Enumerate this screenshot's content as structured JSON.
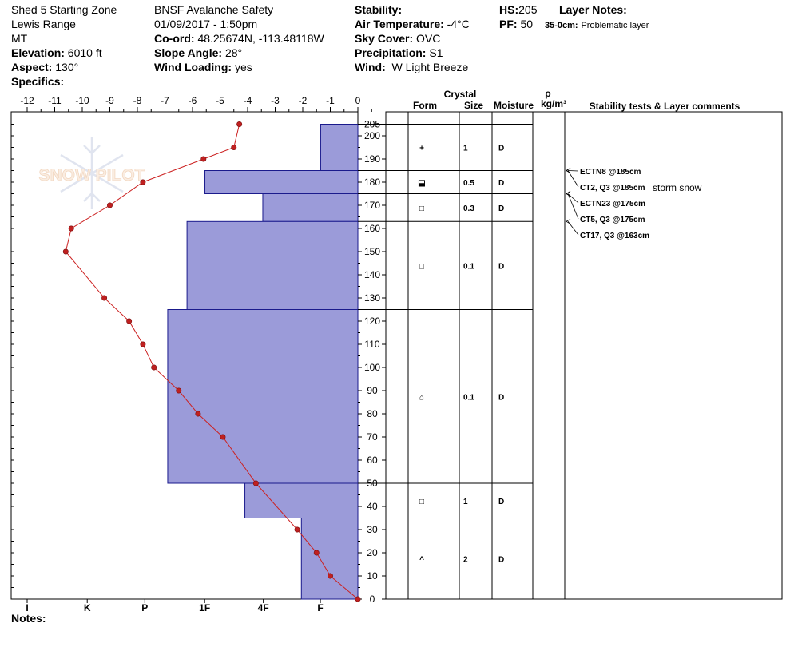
{
  "header": {
    "location": "Shed 5 Starting Zone",
    "range": "Lewis Range",
    "state": "MT",
    "elevation_label": "Elevation:",
    "elevation": "6010 ft",
    "aspect_label": "Aspect:",
    "aspect": "130°",
    "specifics_label": "Specifics:",
    "org": "BNSF Avalanche Safety",
    "datetime": "01/09/2017 - 1:50pm",
    "coord_label": "Co-ord:",
    "coord": "48.25674N, -113.48118W",
    "slope_label": "Slope Angle:",
    "slope": "28°",
    "wind_loading_label": "Wind Loading:",
    "wind_loading": "yes",
    "stability_label": "Stability:",
    "air_temp_label": "Air Temperature:",
    "air_temp": "-4°C",
    "sky_label": "Sky Cover:",
    "sky": "OVC",
    "precip_label": "Precipitation:",
    "precip": "S1",
    "wind_label": "Wind:",
    "wind": "W Light Breeze",
    "hs_label": "HS:",
    "hs": "205",
    "pf_label": "PF:",
    "pf": "50",
    "layer_notes_label": "Layer Notes:",
    "layer_note_range": "35-0cm:",
    "layer_note_text": "Problematic layer",
    "notes_label": "Notes:"
  },
  "watermark": {
    "text": "SNOW PILOT"
  },
  "columns": {
    "crystal": "Crystal",
    "form": "Form",
    "size": "Size",
    "moisture": "Moisture",
    "rho": "ρ",
    "density_unit": "kg/m³",
    "stability": "Stability tests & Layer comments"
  },
  "chart_data": {
    "type": "line",
    "temp_axis": {
      "ticks": [
        -12,
        -11,
        -10,
        -9,
        -8,
        -7,
        -6,
        -5,
        -4,
        -3,
        -2,
        -1,
        0
      ],
      "range": [
        -12.3,
        0
      ]
    },
    "height_axis": {
      "ticks": [
        0,
        10,
        20,
        30,
        40,
        50,
        60,
        70,
        80,
        90,
        100,
        110,
        120,
        130,
        140,
        150,
        160,
        170,
        180,
        190,
        200,
        205
      ],
      "range": [
        0,
        210
      ]
    },
    "hardness_axis": {
      "labels": [
        "I",
        "K",
        "P",
        "1F",
        "4F",
        "F"
      ],
      "scale_positions": [
        -12,
        -9.82,
        -7.73,
        -5.56,
        -3.43,
        -1.36
      ]
    },
    "temperature_profile": {
      "height": [
        205,
        195,
        190,
        180,
        170,
        160,
        150,
        130,
        120,
        110,
        100,
        90,
        80,
        70,
        50,
        30,
        20,
        10,
        0
      ],
      "temp": [
        -4.3,
        -4.5,
        -5.6,
        -7.8,
        -9.0,
        -10.4,
        -10.6,
        -9.2,
        -8.3,
        -7.8,
        -7.4,
        -6.5,
        -5.8,
        -4.9,
        -3.7,
        -2.2,
        -1.5,
        -1.0,
        0
      ]
    },
    "hardness_layers": [
      {
        "top": 205,
        "bottom": 185,
        "value": -1.35
      },
      {
        "top": 185,
        "bottom": 175,
        "value": -5.55
      },
      {
        "top": 175,
        "bottom": 163,
        "value": -3.45
      },
      {
        "top": 163,
        "bottom": 125,
        "value": -6.2
      },
      {
        "top": 125,
        "bottom": 50,
        "value": -6.9
      },
      {
        "top": 50,
        "bottom": 35,
        "value": -4.1
      },
      {
        "top": 35,
        "bottom": 0,
        "value": -2.05
      }
    ],
    "crystal_layers": [
      {
        "top": 205,
        "bottom": 185,
        "form_symbol": "+",
        "size": "1",
        "moisture": "D"
      },
      {
        "top": 185,
        "bottom": 175,
        "form_symbol": "⬓",
        "size": "0.5",
        "moisture": "D"
      },
      {
        "top": 175,
        "bottom": 163,
        "form_symbol": "□",
        "size": "0.3",
        "moisture": "D"
      },
      {
        "top": 163,
        "bottom": 125,
        "form_symbol": "□",
        "size": "0.1",
        "moisture": "D"
      },
      {
        "top": 125,
        "bottom": 50,
        "form_symbol": "⌂",
        "size": "0.1",
        "moisture": "D"
      },
      {
        "top": 50,
        "bottom": 35,
        "form_symbol": "□",
        "size": "1",
        "moisture": "D"
      },
      {
        "top": 35,
        "bottom": 0,
        "form_symbol": "^",
        "size": "2",
        "moisture": "D"
      }
    ],
    "stability_tests": [
      {
        "height": 185,
        "label": "ECTN8 @185cm",
        "comment": ""
      },
      {
        "height": 185,
        "label": "CT2, Q3 @185cm",
        "comment": "storm snow"
      },
      {
        "height": 175,
        "label": "ECTN23 @175cm",
        "comment": ""
      },
      {
        "height": 175,
        "label": "CT5, Q3 @175cm",
        "comment": ""
      },
      {
        "height": 163,
        "label": "CT17, Q3 @163cm",
        "comment": ""
      }
    ],
    "colors": {
      "hardness_fill": "#9b9bd9",
      "hardness_stroke": "#1a1a8c",
      "temp_line": "#cc2222",
      "temp_marker": "#c02020"
    }
  }
}
